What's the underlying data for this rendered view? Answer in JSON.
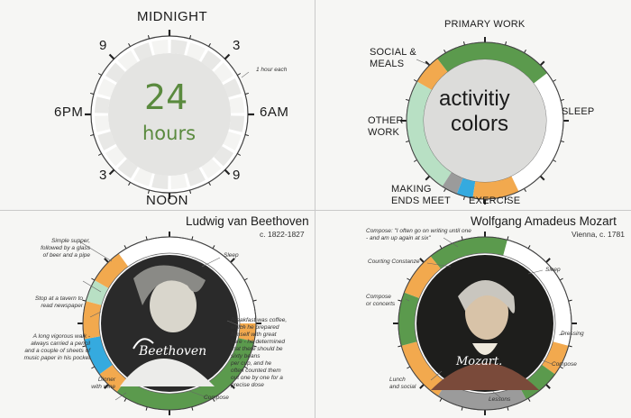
{
  "colors": {
    "primary_work": "#5b9a4d",
    "social_meals": "#f2a94e",
    "other_work": "#b8e0c4",
    "sleep": "#ffffff",
    "making_ends_meet": "#9b9b9b",
    "exercise": "#35aadf",
    "text_green": "#5a8a3e"
  },
  "clock": {
    "midnight": "MIDNIGHT",
    "noon": "NOON",
    "six_pm": "6PM",
    "six_am": "6AM",
    "nine_top_left": "9",
    "three_top_right": "3",
    "three_bottom_left": "3",
    "nine_bottom_right": "9",
    "note": "1 hour each",
    "center_number": "24",
    "center_unit": "hours"
  },
  "legend": {
    "center_line1": "activitiy",
    "center_line2": "colors",
    "primary_work": "PRIMARY WORK",
    "social_meals_1": "SOCIAL &",
    "social_meals_2": "MEALS",
    "sleep": "SLEEP",
    "other_work_1": "OTHER",
    "other_work_2": "WORK",
    "making_1": "MAKING",
    "making_2": "ENDS MEET",
    "exercise": "EXERCISE"
  },
  "beethoven": {
    "name": "Ludwig van Beethoven",
    "dates": "c. 1822-1827",
    "signature": "Beethoven",
    "notes": {
      "supper": [
        "Simple supper,",
        "followed by a glass",
        "of beer and a pipe"
      ],
      "tavern": [
        "Stop at a tavern to",
        "read newspaper"
      ],
      "walk": [
        "A long vigorous walk -",
        "always carried a pencil",
        "and a couple of sheets of",
        "music paper in his pocket"
      ],
      "dinner": [
        "Dinner",
        "with wine"
      ],
      "sleep": [
        "Sleep"
      ],
      "breakfast": [
        "Breakfast was coffee,",
        "which he prepared",
        "himself with great",
        "care - he determined",
        "that there should be",
        "sixty beans",
        "per cup, and he",
        "often counted them",
        "out one by one for a",
        "precise dose"
      ],
      "compose": [
        "Compose"
      ]
    }
  },
  "mozart": {
    "name": "Wolfgang Amadeus Mozart",
    "dates": "Vienna, c. 1781",
    "signature": "Mozart.",
    "notes": {
      "compose_top": [
        "Compose: \"I often go on writing until one",
        "- and am up again at six\""
      ],
      "courting": [
        "Courting Constanze"
      ],
      "compose_concerts": [
        "Compose",
        "or concerts"
      ],
      "lunch": [
        "Lunch",
        "and social"
      ],
      "sleep": [
        "Sleep"
      ],
      "dressing": [
        "Dressing"
      ],
      "compose_right": [
        "Compose"
      ],
      "lessons": [
        "Lessons"
      ]
    }
  }
}
